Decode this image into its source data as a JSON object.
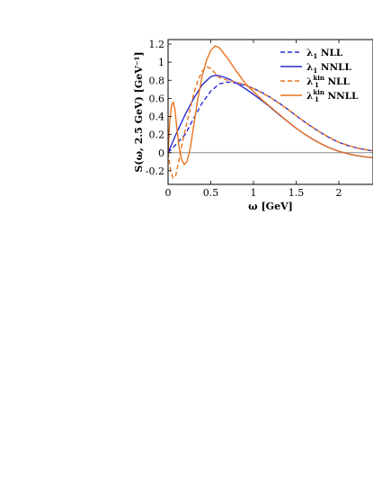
{
  "chart_data": {
    "type": "line",
    "title": "",
    "xlabel": "ω [GeV]",
    "ylabel": "S(ω, 2.5 GeV) [GeV⁻¹]",
    "xlim": [
      0,
      2.4
    ],
    "ylim": [
      -0.35,
      1.25
    ],
    "xticks": [
      0,
      0.5,
      1,
      1.5,
      2
    ],
    "xtick_labels": [
      "0",
      "0.5",
      "1",
      "1.5",
      "2"
    ],
    "yticks": [
      -0.2,
      0,
      0.2,
      0.4,
      0.6,
      0.8,
      1,
      1.2
    ],
    "ytick_labels": [
      "-0.2",
      "0",
      "0.2",
      "0.4",
      "0.6",
      "0.8",
      "1",
      "1.2"
    ],
    "legend_position": "top-right",
    "grid": false,
    "series": [
      {
        "name": "λ₁ NLL",
        "color": "#2a2ad6",
        "dash": "dashed",
        "points": [
          [
            0,
            0.0
          ],
          [
            0.1,
            0.1
          ],
          [
            0.2,
            0.2
          ],
          [
            0.3,
            0.38
          ],
          [
            0.4,
            0.55
          ],
          [
            0.5,
            0.68
          ],
          [
            0.6,
            0.76
          ],
          [
            0.7,
            0.78
          ],
          [
            0.8,
            0.77
          ],
          [
            0.9,
            0.745
          ],
          [
            1.0,
            0.71
          ],
          [
            1.1,
            0.665
          ],
          [
            1.2,
            0.61
          ],
          [
            1.3,
            0.55
          ],
          [
            1.4,
            0.48
          ],
          [
            1.5,
            0.41
          ],
          [
            1.6,
            0.34
          ],
          [
            1.7,
            0.275
          ],
          [
            1.8,
            0.215
          ],
          [
            1.9,
            0.16
          ],
          [
            2.0,
            0.115
          ],
          [
            2.1,
            0.08
          ],
          [
            2.2,
            0.055
          ],
          [
            2.3,
            0.035
          ],
          [
            2.4,
            0.02
          ]
        ]
      },
      {
        "name": "λ₁ NNLL",
        "color": "#2a2ad6",
        "dash": "solid",
        "points": [
          [
            0,
            0.0
          ],
          [
            0.1,
            0.22
          ],
          [
            0.2,
            0.42
          ],
          [
            0.3,
            0.6
          ],
          [
            0.4,
            0.75
          ],
          [
            0.5,
            0.84
          ],
          [
            0.55,
            0.855
          ],
          [
            0.6,
            0.85
          ],
          [
            0.7,
            0.82
          ],
          [
            0.8,
            0.77
          ],
          [
            0.9,
            0.71
          ],
          [
            1.0,
            0.645
          ],
          [
            1.1,
            0.575
          ],
          [
            1.2,
            0.5
          ],
          [
            1.3,
            0.42
          ],
          [
            1.4,
            0.345
          ],
          [
            1.5,
            0.27
          ],
          [
            1.6,
            0.205
          ],
          [
            1.7,
            0.145
          ],
          [
            1.8,
            0.095
          ],
          [
            1.9,
            0.05
          ],
          [
            2.0,
            0.015
          ],
          [
            2.1,
            -0.01
          ],
          [
            2.2,
            -0.03
          ],
          [
            2.3,
            -0.045
          ],
          [
            2.4,
            -0.055
          ]
        ]
      },
      {
        "name": "λ₁ᵏⁱⁿ NLL",
        "color": "#e8731e",
        "dash": "dashed",
        "points": [
          [
            0,
            0.0
          ],
          [
            0.03,
            -0.2
          ],
          [
            0.06,
            -0.28
          ],
          [
            0.09,
            -0.25
          ],
          [
            0.12,
            -0.12
          ],
          [
            0.15,
            0.03
          ],
          [
            0.2,
            0.25
          ],
          [
            0.25,
            0.45
          ],
          [
            0.3,
            0.65
          ],
          [
            0.35,
            0.8
          ],
          [
            0.4,
            0.9
          ],
          [
            0.45,
            0.95
          ],
          [
            0.5,
            0.93
          ],
          [
            0.55,
            0.88
          ],
          [
            0.6,
            0.83
          ],
          [
            0.7,
            0.8
          ],
          [
            0.8,
            0.78
          ],
          [
            0.9,
            0.75
          ],
          [
            1.0,
            0.71
          ],
          [
            1.2,
            0.61
          ],
          [
            1.4,
            0.48
          ],
          [
            1.6,
            0.34
          ],
          [
            1.8,
            0.215
          ],
          [
            2.0,
            0.115
          ],
          [
            2.2,
            0.055
          ],
          [
            2.4,
            0.02
          ]
        ]
      },
      {
        "name": "λ₁ᵏⁱⁿ NNLL",
        "color": "#e8731e",
        "dash": "solid",
        "points": [
          [
            0,
            0.0
          ],
          [
            0.02,
            0.35
          ],
          [
            0.04,
            0.52
          ],
          [
            0.06,
            0.56
          ],
          [
            0.08,
            0.48
          ],
          [
            0.1,
            0.3
          ],
          [
            0.13,
            0.05
          ],
          [
            0.16,
            -0.08
          ],
          [
            0.19,
            -0.13
          ],
          [
            0.22,
            -0.1
          ],
          [
            0.26,
            0.05
          ],
          [
            0.3,
            0.3
          ],
          [
            0.35,
            0.6
          ],
          [
            0.4,
            0.85
          ],
          [
            0.45,
            1.02
          ],
          [
            0.5,
            1.13
          ],
          [
            0.55,
            1.18
          ],
          [
            0.6,
            1.16
          ],
          [
            0.7,
            1.04
          ],
          [
            0.8,
            0.9
          ],
          [
            0.9,
            0.77
          ],
          [
            1.0,
            0.675
          ],
          [
            1.1,
            0.585
          ],
          [
            1.2,
            0.505
          ],
          [
            1.3,
            0.425
          ],
          [
            1.4,
            0.345
          ],
          [
            1.5,
            0.27
          ],
          [
            1.6,
            0.205
          ],
          [
            1.7,
            0.145
          ],
          [
            1.8,
            0.095
          ],
          [
            1.9,
            0.05
          ],
          [
            2.0,
            0.015
          ],
          [
            2.1,
            -0.01
          ],
          [
            2.2,
            -0.03
          ],
          [
            2.3,
            -0.045
          ],
          [
            2.4,
            -0.055
          ]
        ]
      }
    ],
    "legend": [
      {
        "symbol": "λ",
        "sub": "1",
        "sup": "",
        "suffix": " NLL"
      },
      {
        "symbol": "λ",
        "sub": "1",
        "sup": "",
        "suffix": " NNLL"
      },
      {
        "symbol": "λ",
        "sub": "1",
        "sup": "kin",
        "suffix": " NLL"
      },
      {
        "symbol": "λ",
        "sub": "1",
        "sup": "kin",
        "suffix": " NNLL"
      }
    ]
  }
}
